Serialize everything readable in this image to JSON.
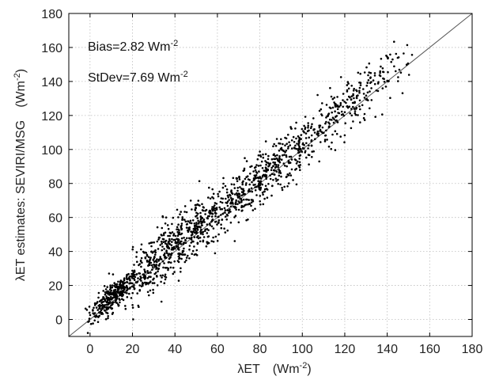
{
  "chart_data": {
    "type": "scatter",
    "xlabel": {
      "prefix": "λET",
      "unit_base": "(Wm",
      "unit_exp": "-2",
      "unit_end": ")"
    },
    "ylabel": {
      "prefix": "λET estimates: SEVIRI/MSG",
      "unit_base": "(Wm",
      "unit_exp": "-2",
      "unit_end": ")"
    },
    "xlim": [
      -10,
      180
    ],
    "ylim": [
      -10,
      180
    ],
    "x_ticks": [
      0,
      20,
      40,
      60,
      80,
      100,
      120,
      140,
      160,
      180
    ],
    "y_ticks": [
      0,
      20,
      40,
      60,
      80,
      100,
      120,
      140,
      160,
      180
    ],
    "grid": true,
    "reference_line": "1:1",
    "annotations": [
      {
        "base": "Bias=2.82 Wm",
        "exp": "-2"
      },
      {
        "base": "StDev=7.69 Wm",
        "exp": "-2"
      }
    ],
    "point_color": "#000000",
    "point_clusters": [
      {
        "x_mean": 10,
        "x_sd": 5,
        "n": 260
      },
      {
        "x_mean": 25,
        "x_sd": 8,
        "n": 240
      },
      {
        "x_mean": 45,
        "x_sd": 10,
        "n": 320
      },
      {
        "x_mean": 70,
        "x_sd": 12,
        "n": 320
      },
      {
        "x_mean": 95,
        "x_sd": 11,
        "n": 260
      },
      {
        "x_mean": 125,
        "x_sd": 12,
        "n": 200
      }
    ],
    "bias": 2.82,
    "stdev": 7.69
  }
}
